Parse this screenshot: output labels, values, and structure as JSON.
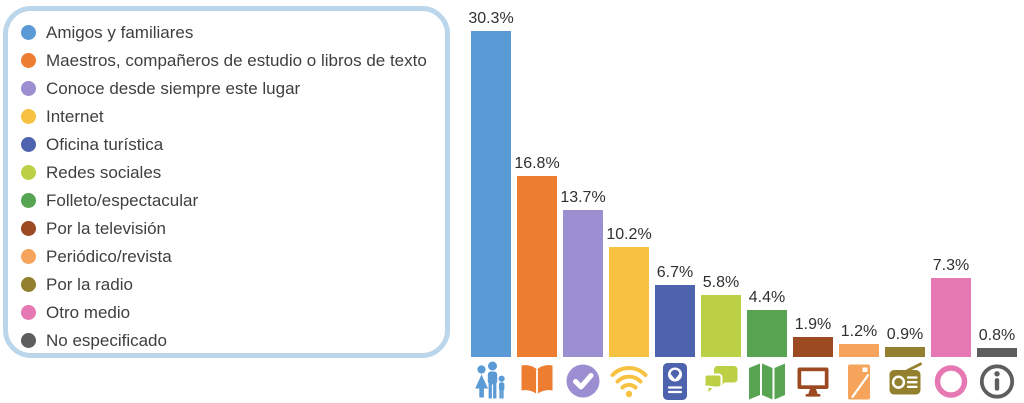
{
  "figure": {
    "background": "#ffffff",
    "legend_border_color": "#BBD6EA",
    "text_color": "#3F3F3F",
    "value_label_color": "#303030"
  },
  "chart_data": {
    "type": "bar",
    "title": "",
    "xlabel": "",
    "ylabel": "",
    "unit": "%",
    "axes_visible": false,
    "grid": false,
    "legend_position": "left",
    "ylim": [
      0,
      31
    ],
    "categories": [
      "Amigos y familiares",
      "Maestros, compañeros de estudio o libros de texto",
      "Conoce desde siempre este lugar",
      "Internet",
      "Oficina turística",
      "Redes sociales",
      "Folleto/espectacular",
      "Por la televisión",
      "Periódico/revista",
      "Por la radio",
      "Otro medio",
      "No especificado"
    ],
    "values": [
      30.3,
      16.8,
      13.7,
      10.2,
      6.7,
      5.8,
      4.4,
      1.9,
      1.2,
      0.9,
      7.3,
      0.8
    ],
    "value_labels": [
      "30.3%",
      "16.8%",
      "13.7%",
      "10.2%",
      "6.7%",
      "5.8%",
      "4.4%",
      "1.9%",
      "1.2%",
      "0.9%",
      "7.3%",
      "0.8%"
    ],
    "colors": [
      "#5B9BD5",
      "#ED7D31",
      "#9B8FD1",
      "#F7C242",
      "#4E63AE",
      "#BCD046",
      "#57A553",
      "#9C4A22",
      "#F6A45C",
      "#93802E",
      "#E678B3",
      "#5E5E5E"
    ],
    "icons": [
      "family-icon",
      "open-book-icon",
      "check-circle-icon",
      "wifi-icon",
      "passport-icon",
      "chat-bubbles-icon",
      "map-icon",
      "tv-icon",
      "newspaper-icon",
      "radio-icon",
      "ring-icon",
      "info-icon"
    ]
  }
}
